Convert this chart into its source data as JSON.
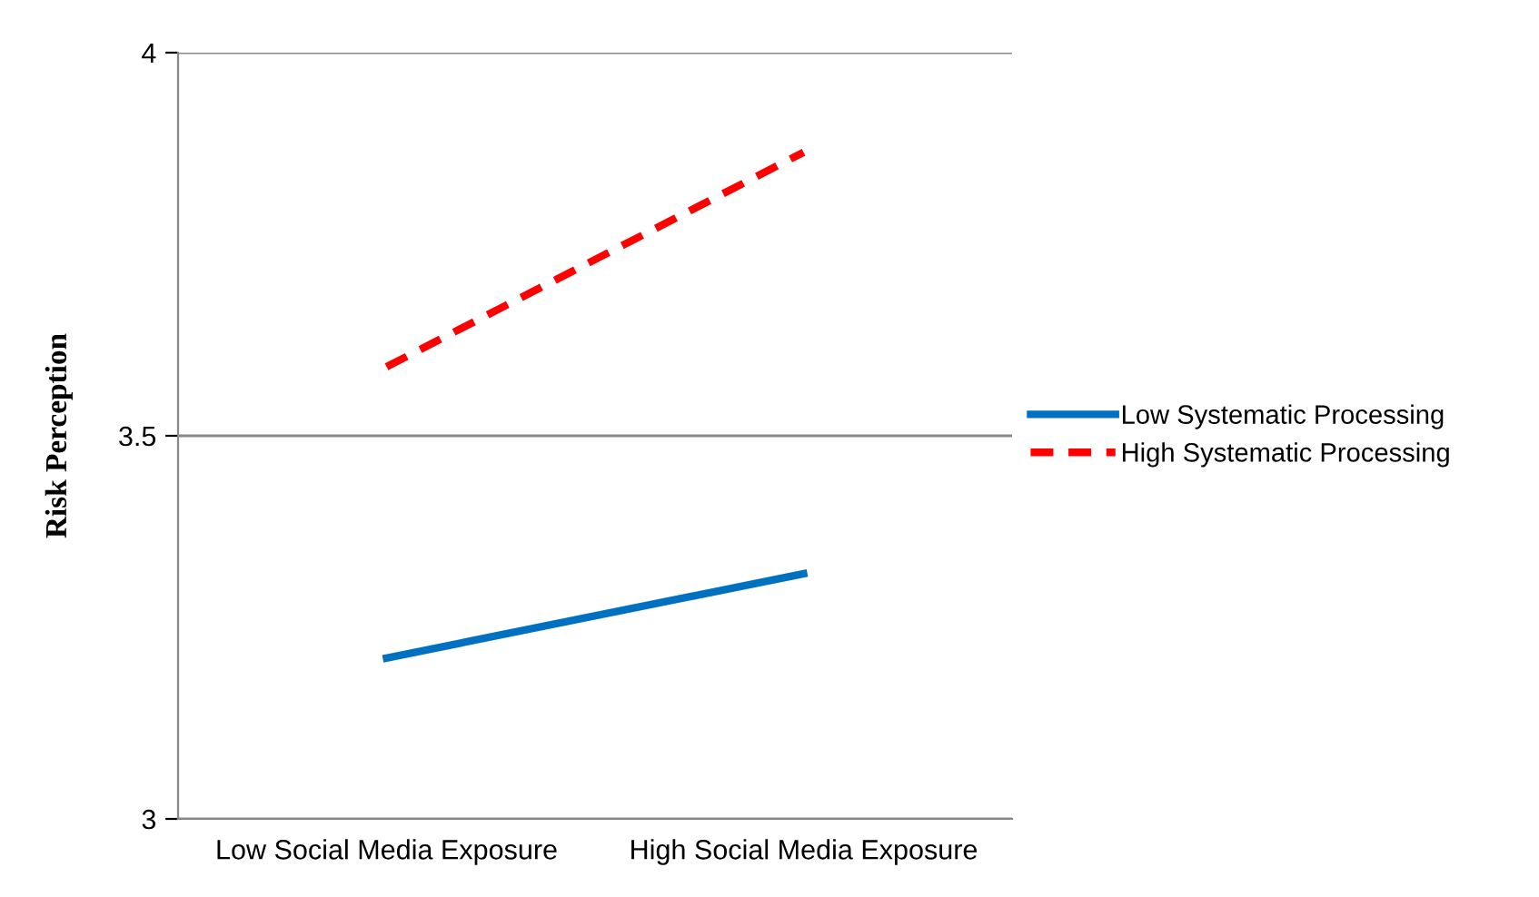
{
  "chart_data": {
    "type": "line",
    "ylabel": "Risk Perception",
    "categories": [
      "Low Social Media Exposure",
      "High Social Media Exposure"
    ],
    "series": [
      {
        "name": "Low Systematic Processing",
        "color": "#0070c0",
        "values": [
          3.21,
          3.32
        ],
        "line_style": "solid"
      },
      {
        "name": "High Systematic Processing",
        "color": "#ff0000",
        "values": [
          3.59,
          3.87
        ],
        "line_style": "dashed"
      }
    ],
    "ylim": [
      3,
      4
    ],
    "yticks": [
      3,
      3.5,
      4
    ],
    "grid": "y",
    "legend": "right",
    "marker": "none"
  }
}
